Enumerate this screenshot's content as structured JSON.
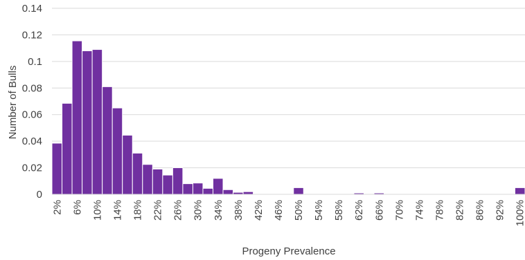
{
  "chart_data": {
    "type": "bar",
    "xlabel": "Progeny Prevalence",
    "ylabel": "Number of Bulls",
    "ylim": [
      0,
      0.14
    ],
    "y_ticks": [
      "0",
      "0.02",
      "0.04",
      "0.06",
      "0.08",
      "0.1",
      "0.12",
      "0.14"
    ],
    "grid": true,
    "bar_color": "#7030A0",
    "categories": [
      "2%",
      "4%",
      "6%",
      "8%",
      "10%",
      "12%",
      "14%",
      "16%",
      "18%",
      "20%",
      "22%",
      "24%",
      "26%",
      "28%",
      "30%",
      "32%",
      "34%",
      "36%",
      "38%",
      "40%",
      "42%",
      "44%",
      "46%",
      "48%",
      "50%",
      "52%",
      "54%",
      "56%",
      "58%",
      "60%",
      "62%",
      "64%",
      "66%",
      "68%",
      "70%",
      "72%",
      "74%",
      "76%",
      "78%",
      "80%",
      "82%",
      "84%",
      "86%",
      "88%",
      "92%",
      "94%",
      "100%"
    ],
    "values": [
      0.0385,
      0.0685,
      0.1155,
      0.108,
      0.109,
      0.081,
      0.065,
      0.0445,
      0.031,
      0.0225,
      0.019,
      0.0145,
      0.02,
      0.008,
      0.0085,
      0.0045,
      0.012,
      0.0035,
      0.0015,
      0.002,
      0.0005,
      0.0003,
      0.0003,
      0.0003,
      0.005,
      0.0002,
      0.0002,
      0.0002,
      0.0002,
      0.0002,
      0.001,
      0.0002,
      0.001,
      0.0002,
      0.0002,
      0.0002,
      0.0002,
      0.0003,
      0.0002,
      0.0002,
      0.0002,
      0.0002,
      0.0002,
      0.0002,
      0.0002,
      0.0002,
      0.005
    ],
    "x_tick_labels": [
      "2%",
      "6%",
      "10%",
      "14%",
      "18%",
      "22%",
      "26%",
      "30%",
      "34%",
      "38%",
      "42%",
      "46%",
      "50%",
      "54%",
      "58%",
      "62%",
      "66%",
      "70%",
      "74%",
      "78%",
      "82%",
      "86%",
      "92%",
      "100%"
    ]
  }
}
